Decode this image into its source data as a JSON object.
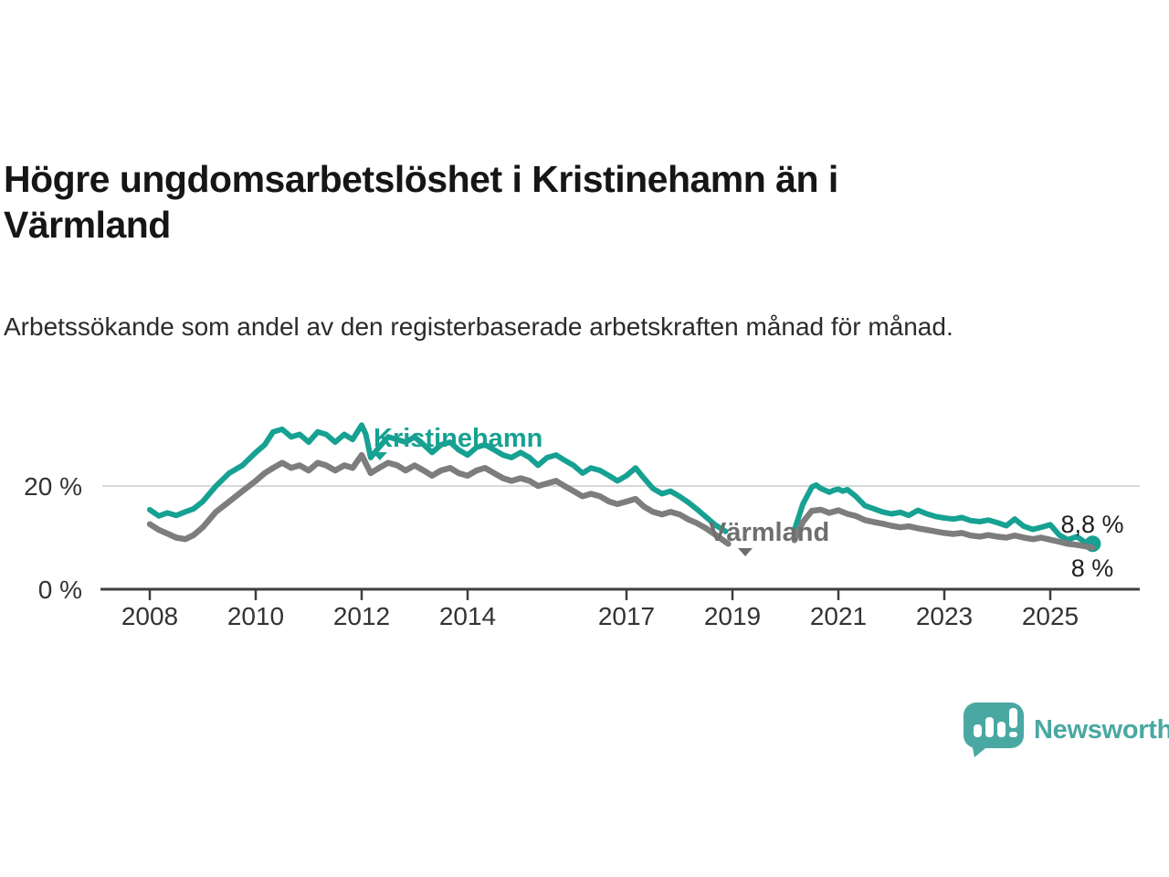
{
  "header": {
    "title": "Högre ungdomsarbetslöshet i Kristinehamn än i Värmland",
    "subtitle": "Arbetssökande som andel av den registerbaserade arbetskraften månad för månad."
  },
  "branding": {
    "name": "Newsworthy",
    "color": "#4AA8A2",
    "icon": "newsworthy-bubble-barchart-icon"
  },
  "colors": {
    "kristinehamn_teal": "#16a192",
    "varmland_gray": "#7d7d7d",
    "varmland_label_gray": "#6e6e6e",
    "grid_gray": "#d9d9d9",
    "axis_dark": "#3f3f3f",
    "text_dark": "#333333"
  },
  "chart_data": {
    "type": "line",
    "title": "Högre ungdomsarbetslöshet i Kristinehamn än i Värmland",
    "subtitle": "Arbetssökande som andel av den registerbaserade arbetskraften månad för månad.",
    "unit": "%",
    "grid": "horizontal-only",
    "x_axis": {
      "ticks": [
        2008,
        2010,
        2012,
        2014,
        2017,
        2019,
        2021,
        2023,
        2025
      ],
      "range": [
        2007.1,
        2026.7
      ]
    },
    "y_axis": {
      "ticks": [
        {
          "value": 20,
          "label": "20 %"
        },
        {
          "value": 0,
          "label": "0 %"
        }
      ],
      "range": [
        0,
        36
      ],
      "grid_values": [
        20
      ]
    },
    "series": [
      {
        "name": "Kristinehamn",
        "color": "#16a192",
        "label_color": "#16a192",
        "end_label": "8,8 %",
        "end_value": 8.8,
        "end_dot": true,
        "points": [
          [
            2008,
            15.4
          ],
          [
            2008.17,
            14.2
          ],
          [
            2008.33,
            14.8
          ],
          [
            2008.5,
            14.3
          ],
          [
            2008.67,
            15
          ],
          [
            2008.83,
            15.6
          ],
          [
            2009,
            17
          ],
          [
            2009.25,
            20
          ],
          [
            2009.5,
            22.5
          ],
          [
            2009.75,
            24
          ],
          [
            2010,
            26.5
          ],
          [
            2010.17,
            28
          ],
          [
            2010.33,
            30.5
          ],
          [
            2010.5,
            31
          ],
          [
            2010.67,
            29.5
          ],
          [
            2010.83,
            30
          ],
          [
            2011,
            28.5
          ],
          [
            2011.17,
            30.5
          ],
          [
            2011.33,
            30
          ],
          [
            2011.5,
            28.5
          ],
          [
            2011.67,
            30
          ],
          [
            2011.83,
            29
          ],
          [
            2012,
            31.8
          ],
          [
            2012.08,
            30
          ],
          [
            2012.17,
            25.5
          ],
          [
            2012.33,
            27.5
          ],
          [
            2012.5,
            29.5
          ],
          [
            2012.67,
            29
          ],
          [
            2012.83,
            28.5
          ],
          [
            2013,
            29.5
          ],
          [
            2013.17,
            28
          ],
          [
            2013.33,
            26.5
          ],
          [
            2013.5,
            28
          ],
          [
            2013.67,
            28.5
          ],
          [
            2013.83,
            27
          ],
          [
            2014,
            26
          ],
          [
            2014.17,
            27.5
          ],
          [
            2014.33,
            28
          ],
          [
            2014.5,
            27
          ],
          [
            2014.67,
            26
          ],
          [
            2014.83,
            25.5
          ],
          [
            2015,
            26.5
          ],
          [
            2015.17,
            25.5
          ],
          [
            2015.33,
            24
          ],
          [
            2015.5,
            25.5
          ],
          [
            2015.67,
            26
          ],
          [
            2015.83,
            25
          ],
          [
            2016,
            24
          ],
          [
            2016.17,
            22.5
          ],
          [
            2016.33,
            23.5
          ],
          [
            2016.5,
            23
          ],
          [
            2016.67,
            22
          ],
          [
            2016.83,
            21
          ],
          [
            2017,
            22
          ],
          [
            2017.17,
            23.5
          ],
          [
            2017.33,
            21.5
          ],
          [
            2017.5,
            19.5
          ],
          [
            2017.67,
            18.5
          ],
          [
            2017.83,
            19
          ],
          [
            2018,
            18
          ],
          [
            2018.17,
            16.8
          ],
          [
            2018.33,
            15.5
          ],
          [
            2018.5,
            14
          ],
          [
            2018.67,
            12.5
          ],
          [
            2018.87,
            11.2
          ],
          null,
          [
            2020.17,
            11.5
          ],
          [
            2020.33,
            16.5
          ],
          [
            2020.5,
            19.8
          ],
          [
            2020.58,
            20.2
          ],
          [
            2020.67,
            19.5
          ],
          [
            2020.83,
            18.8
          ],
          [
            2020.92,
            19.2
          ],
          [
            2021,
            19.4
          ],
          [
            2021.08,
            19
          ],
          [
            2021.17,
            19.3
          ],
          [
            2021.33,
            18
          ],
          [
            2021.5,
            16.2
          ],
          [
            2021.67,
            15.6
          ],
          [
            2021.83,
            15
          ],
          [
            2022,
            14.6
          ],
          [
            2022.17,
            14.9
          ],
          [
            2022.33,
            14.3
          ],
          [
            2022.5,
            15.3
          ],
          [
            2022.67,
            14.6
          ],
          [
            2022.83,
            14.1
          ],
          [
            2023,
            13.8
          ],
          [
            2023.17,
            13.6
          ],
          [
            2023.33,
            13.9
          ],
          [
            2023.5,
            13.3
          ],
          [
            2023.67,
            13.1
          ],
          [
            2023.83,
            13.4
          ],
          [
            2024,
            12.9
          ],
          [
            2024.17,
            12.3
          ],
          [
            2024.33,
            13.6
          ],
          [
            2024.5,
            12.2
          ],
          [
            2024.67,
            11.6
          ],
          [
            2024.83,
            12
          ],
          [
            2025,
            12.5
          ],
          [
            2025.17,
            10.5
          ],
          [
            2025.33,
            9.6
          ],
          [
            2025.5,
            10.2
          ],
          [
            2025.67,
            9
          ],
          [
            2025.8,
            8.8
          ]
        ]
      },
      {
        "name": "Värmland",
        "color": "#7d7d7d",
        "label_color": "#6e6e6e",
        "end_label": "8 %",
        "end_value": 8,
        "end_dot": false,
        "points": [
          [
            2008,
            12.6
          ],
          [
            2008.17,
            11.5
          ],
          [
            2008.33,
            10.8
          ],
          [
            2008.5,
            10
          ],
          [
            2008.67,
            9.7
          ],
          [
            2008.83,
            10.5
          ],
          [
            2009,
            12
          ],
          [
            2009.25,
            15
          ],
          [
            2009.5,
            17
          ],
          [
            2009.75,
            19
          ],
          [
            2010,
            21
          ],
          [
            2010.17,
            22.5
          ],
          [
            2010.33,
            23.5
          ],
          [
            2010.5,
            24.5
          ],
          [
            2010.67,
            23.5
          ],
          [
            2010.83,
            24
          ],
          [
            2011,
            23
          ],
          [
            2011.17,
            24.5
          ],
          [
            2011.33,
            24
          ],
          [
            2011.5,
            23
          ],
          [
            2011.67,
            24
          ],
          [
            2011.83,
            23.5
          ],
          [
            2012,
            26
          ],
          [
            2012.17,
            22.5
          ],
          [
            2012.33,
            23.5
          ],
          [
            2012.5,
            24.5
          ],
          [
            2012.67,
            24
          ],
          [
            2012.83,
            23
          ],
          [
            2013,
            24
          ],
          [
            2013.17,
            23
          ],
          [
            2013.33,
            22
          ],
          [
            2013.5,
            23
          ],
          [
            2013.67,
            23.5
          ],
          [
            2013.83,
            22.5
          ],
          [
            2014,
            22
          ],
          [
            2014.17,
            23
          ],
          [
            2014.33,
            23.5
          ],
          [
            2014.5,
            22.5
          ],
          [
            2014.67,
            21.5
          ],
          [
            2014.83,
            21
          ],
          [
            2015,
            21.5
          ],
          [
            2015.17,
            21
          ],
          [
            2015.33,
            20
          ],
          [
            2015.5,
            20.5
          ],
          [
            2015.67,
            21
          ],
          [
            2015.83,
            20
          ],
          [
            2016,
            19
          ],
          [
            2016.17,
            18
          ],
          [
            2016.33,
            18.5
          ],
          [
            2016.5,
            18
          ],
          [
            2016.67,
            17
          ],
          [
            2016.83,
            16.5
          ],
          [
            2017,
            17
          ],
          [
            2017.17,
            17.5
          ],
          [
            2017.33,
            16
          ],
          [
            2017.5,
            15
          ],
          [
            2017.67,
            14.5
          ],
          [
            2017.83,
            15
          ],
          [
            2018,
            14.5
          ],
          [
            2018.17,
            13.5
          ],
          [
            2018.33,
            12.8
          ],
          [
            2018.5,
            11.8
          ],
          [
            2018.67,
            10.6
          ],
          [
            2018.92,
            8.8
          ],
          null,
          [
            2020.17,
            9.5
          ],
          [
            2020.33,
            13
          ],
          [
            2020.5,
            15.2
          ],
          [
            2020.67,
            15.4
          ],
          [
            2020.83,
            14.8
          ],
          [
            2021,
            15.3
          ],
          [
            2021.17,
            14.6
          ],
          [
            2021.33,
            14.2
          ],
          [
            2021.5,
            13.4
          ],
          [
            2021.67,
            13
          ],
          [
            2021.83,
            12.7
          ],
          [
            2022,
            12.3
          ],
          [
            2022.17,
            12
          ],
          [
            2022.33,
            12.2
          ],
          [
            2022.5,
            11.8
          ],
          [
            2022.67,
            11.5
          ],
          [
            2022.83,
            11.2
          ],
          [
            2023,
            10.9
          ],
          [
            2023.17,
            10.7
          ],
          [
            2023.33,
            10.9
          ],
          [
            2023.5,
            10.4
          ],
          [
            2023.67,
            10.2
          ],
          [
            2023.83,
            10.5
          ],
          [
            2024,
            10.2
          ],
          [
            2024.17,
            10
          ],
          [
            2024.33,
            10.4
          ],
          [
            2024.5,
            10
          ],
          [
            2024.67,
            9.7
          ],
          [
            2024.83,
            10
          ],
          [
            2025,
            9.6
          ],
          [
            2025.17,
            9.2
          ],
          [
            2025.33,
            8.8
          ],
          [
            2025.5,
            8.6
          ],
          [
            2025.67,
            8.3
          ],
          [
            2025.8,
            8
          ]
        ]
      }
    ]
  }
}
